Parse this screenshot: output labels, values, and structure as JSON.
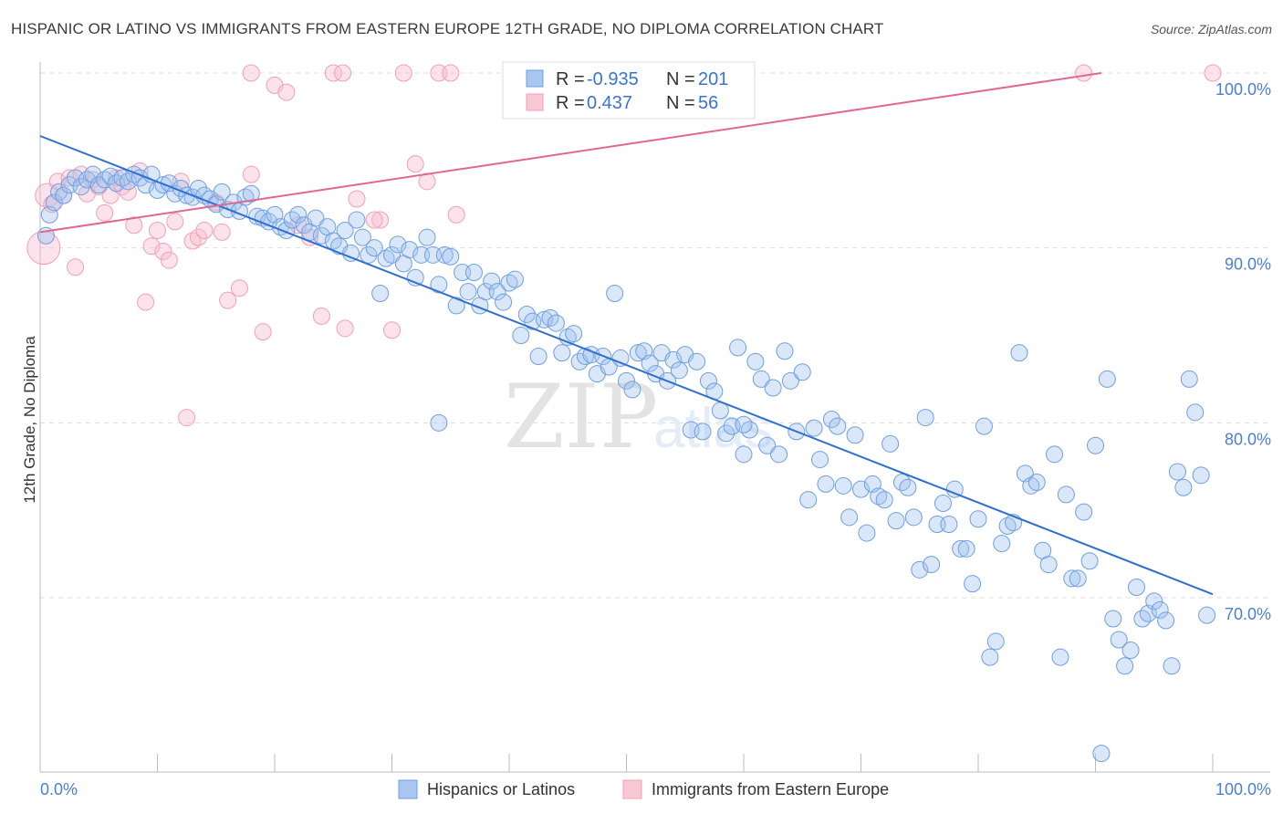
{
  "title": "HISPANIC OR LATINO VS IMMIGRANTS FROM EASTERN EUROPE 12TH GRADE, NO DIPLOMA CORRELATION CHART",
  "source": "Source: ZipAtlas.com",
  "watermark": {
    "zip": "ZIP",
    "atlas": "atlas"
  },
  "colors": {
    "blue": "#6f9fe0",
    "blue_line": "#2f6fd0",
    "pink": "#f0a0b8",
    "pink_line": "#e06890",
    "grid": "#dddddd",
    "tick_text": "#4a7fd4"
  },
  "chart_data": {
    "type": "scatter",
    "title": "HISPANIC OR LATINO VS IMMIGRANTS FROM EASTERN EUROPE 12TH GRADE, NO DIPLOMA CORRELATION CHART",
    "xlabel": "",
    "ylabel": "12th Grade, No Diploma",
    "xlim": [
      0,
      100
    ],
    "ylim": [
      60.5,
      101.5
    ],
    "x_ticks": [
      "0.0%",
      "100.0%"
    ],
    "y_ticks": [
      {
        "value": 100,
        "label": "100.0%"
      },
      {
        "value": 90,
        "label": "90.0%"
      },
      {
        "value": 80,
        "label": "80.0%"
      },
      {
        "value": 70,
        "label": "70.0%"
      }
    ],
    "grid": true,
    "legend_position": "bottom",
    "stats": [
      {
        "r_label": "R =",
        "r": "-0.935",
        "n_label": "N =",
        "n": "201"
      },
      {
        "r_label": "R =",
        "r": " 0.437",
        "n_label": "N =",
        "n": " 56"
      }
    ],
    "series": [
      {
        "name": "Hispanics or Latinos",
        "color": "#6f9fe0",
        "trend": {
          "x": [
            0,
            100
          ],
          "y": [
            96.4,
            70.2
          ]
        },
        "points": [
          [
            0.5,
            90.7
          ],
          [
            0.8,
            91.9
          ],
          [
            1.2,
            92.6
          ],
          [
            1.6,
            93.2
          ],
          [
            2.0,
            93.0
          ],
          [
            2.5,
            93.6
          ],
          [
            3.0,
            94.0
          ],
          [
            3.5,
            93.5
          ],
          [
            4.0,
            93.9
          ],
          [
            4.5,
            94.2
          ],
          [
            5.0,
            93.6
          ],
          [
            5.5,
            93.9
          ],
          [
            6.0,
            94.1
          ],
          [
            6.5,
            93.7
          ],
          [
            7.0,
            94.0
          ],
          [
            7.5,
            93.8
          ],
          [
            8.0,
            94.2
          ],
          [
            8.5,
            94.0
          ],
          [
            9.0,
            93.6
          ],
          [
            9.5,
            94.2
          ],
          [
            10.0,
            93.3
          ],
          [
            10.5,
            93.6
          ],
          [
            11.0,
            93.7
          ],
          [
            11.5,
            93.1
          ],
          [
            12.0,
            93.4
          ],
          [
            12.5,
            93.0
          ],
          [
            13.0,
            92.9
          ],
          [
            13.5,
            93.4
          ],
          [
            14.0,
            93.0
          ],
          [
            14.5,
            92.8
          ],
          [
            15.0,
            92.5
          ],
          [
            15.5,
            93.2
          ],
          [
            16.0,
            92.2
          ],
          [
            16.5,
            92.6
          ],
          [
            17.0,
            92.1
          ],
          [
            17.5,
            92.9
          ],
          [
            18.0,
            93.1
          ],
          [
            18.5,
            91.8
          ],
          [
            19.0,
            91.7
          ],
          [
            19.5,
            91.5
          ],
          [
            20.0,
            91.9
          ],
          [
            20.5,
            91.2
          ],
          [
            21.0,
            91.0
          ],
          [
            21.5,
            91.6
          ],
          [
            22.0,
            91.9
          ],
          [
            22.5,
            91.3
          ],
          [
            23.0,
            90.9
          ],
          [
            23.5,
            91.7
          ],
          [
            24.0,
            90.7
          ],
          [
            24.5,
            91.2
          ],
          [
            25.0,
            90.4
          ],
          [
            25.5,
            90.1
          ],
          [
            26.0,
            91.0
          ],
          [
            26.5,
            89.7
          ],
          [
            27.0,
            91.6
          ],
          [
            27.5,
            90.6
          ],
          [
            28.0,
            89.6
          ],
          [
            28.5,
            90.0
          ],
          [
            29.0,
            87.4
          ],
          [
            29.5,
            89.4
          ],
          [
            30.0,
            89.6
          ],
          [
            30.5,
            90.2
          ],
          [
            31.0,
            89.1
          ],
          [
            31.5,
            89.9
          ],
          [
            32.0,
            88.3
          ],
          [
            32.5,
            89.6
          ],
          [
            33.0,
            90.6
          ],
          [
            33.5,
            89.6
          ],
          [
            34.0,
            87.9
          ],
          [
            34.5,
            89.6
          ],
          [
            35.0,
            89.5
          ],
          [
            35.5,
            86.7
          ],
          [
            36.0,
            88.6
          ],
          [
            36.5,
            87.5
          ],
          [
            37.0,
            88.6
          ],
          [
            37.5,
            86.7
          ],
          [
            38.0,
            87.5
          ],
          [
            38.5,
            88.1
          ],
          [
            39.0,
            87.5
          ],
          [
            39.5,
            86.9
          ],
          [
            40.0,
            88.0
          ],
          [
            40.5,
            88.2
          ],
          [
            41.0,
            85.0
          ],
          [
            41.5,
            86.2
          ],
          [
            42.0,
            85.8
          ],
          [
            42.5,
            83.8
          ],
          [
            43.0,
            85.9
          ],
          [
            43.5,
            86.0
          ],
          [
            44.0,
            85.7
          ],
          [
            44.5,
            84.0
          ],
          [
            45.0,
            84.9
          ],
          [
            45.5,
            85.1
          ],
          [
            46.0,
            83.5
          ],
          [
            46.5,
            83.8
          ],
          [
            47.0,
            83.9
          ],
          [
            47.5,
            82.8
          ],
          [
            48.0,
            83.8
          ],
          [
            48.5,
            83.2
          ],
          [
            49.0,
            87.4
          ],
          [
            49.5,
            83.7
          ],
          [
            50.0,
            82.4
          ],
          [
            50.5,
            81.9
          ],
          [
            51.0,
            84.0
          ],
          [
            51.5,
            84.1
          ],
          [
            52.0,
            83.4
          ],
          [
            52.5,
            82.8
          ],
          [
            53.0,
            84.0
          ],
          [
            53.5,
            82.4
          ],
          [
            54.0,
            83.6
          ],
          [
            54.5,
            83.0
          ],
          [
            55.0,
            83.9
          ],
          [
            55.5,
            79.6
          ],
          [
            56.0,
            83.5
          ],
          [
            56.5,
            79.5
          ],
          [
            57.0,
            82.4
          ],
          [
            57.5,
            81.8
          ],
          [
            58.0,
            80.7
          ],
          [
            58.5,
            79.4
          ],
          [
            59.0,
            79.8
          ],
          [
            59.5,
            84.3
          ],
          [
            60.0,
            78.2
          ],
          [
            60.5,
            79.6
          ],
          [
            61.0,
            83.5
          ],
          [
            61.5,
            82.5
          ],
          [
            62.0,
            78.7
          ],
          [
            62.5,
            82.0
          ],
          [
            63.0,
            78.2
          ],
          [
            63.5,
            84.1
          ],
          [
            64.0,
            82.4
          ],
          [
            64.5,
            79.5
          ],
          [
            65.0,
            82.9
          ],
          [
            65.5,
            75.6
          ],
          [
            66.0,
            79.7
          ],
          [
            66.5,
            77.9
          ],
          [
            67.0,
            76.5
          ],
          [
            67.5,
            80.2
          ],
          [
            68.0,
            79.8
          ],
          [
            68.5,
            76.4
          ],
          [
            69.0,
            74.6
          ],
          [
            69.5,
            79.3
          ],
          [
            70.0,
            76.2
          ],
          [
            70.5,
            73.7
          ],
          [
            71.0,
            76.5
          ],
          [
            71.5,
            75.8
          ],
          [
            72.0,
            75.6
          ],
          [
            72.5,
            78.8
          ],
          [
            73.0,
            74.4
          ],
          [
            73.5,
            76.6
          ],
          [
            74.0,
            76.3
          ],
          [
            74.5,
            74.6
          ],
          [
            75.0,
            71.6
          ],
          [
            75.5,
            80.3
          ],
          [
            76.0,
            71.9
          ],
          [
            76.5,
            74.2
          ],
          [
            77.0,
            75.4
          ],
          [
            77.5,
            74.2
          ],
          [
            78.0,
            76.2
          ],
          [
            78.5,
            72.8
          ],
          [
            79.0,
            72.8
          ],
          [
            79.5,
            70.8
          ],
          [
            80.0,
            74.5
          ],
          [
            80.5,
            79.8
          ],
          [
            81.0,
            66.6
          ],
          [
            81.5,
            67.5
          ],
          [
            82.0,
            73.1
          ],
          [
            82.5,
            74.1
          ],
          [
            83.0,
            74.3
          ],
          [
            83.5,
            84.0
          ],
          [
            84.0,
            77.1
          ],
          [
            84.5,
            76.4
          ],
          [
            85.0,
            76.6
          ],
          [
            85.5,
            72.7
          ],
          [
            86.0,
            71.9
          ],
          [
            86.5,
            78.2
          ],
          [
            87.0,
            66.6
          ],
          [
            87.5,
            75.9
          ],
          [
            88.0,
            71.1
          ],
          [
            88.5,
            71.1
          ],
          [
            89.0,
            74.9
          ],
          [
            89.5,
            72.1
          ],
          [
            90.0,
            78.7
          ],
          [
            90.5,
            61.1
          ],
          [
            91.0,
            82.5
          ],
          [
            91.5,
            68.8
          ],
          [
            92.0,
            67.6
          ],
          [
            92.5,
            66.1
          ],
          [
            93.0,
            67.0
          ],
          [
            93.5,
            70.6
          ],
          [
            94.0,
            68.8
          ],
          [
            94.5,
            69.1
          ],
          [
            95.0,
            69.8
          ],
          [
            95.5,
            69.3
          ],
          [
            96.0,
            68.7
          ],
          [
            96.5,
            66.1
          ],
          [
            97.0,
            77.2
          ],
          [
            97.5,
            76.3
          ],
          [
            98.0,
            82.5
          ],
          [
            98.5,
            80.6
          ],
          [
            99.0,
            77.0
          ],
          [
            99.5,
            69.0
          ],
          [
            60.0,
            79.9
          ],
          [
            34.0,
            80.0
          ]
        ]
      },
      {
        "name": "Immigrants from Eastern Europe",
        "color": "#f0a0b8",
        "trend": {
          "x": [
            0,
            90.5
          ],
          "y": [
            90.9,
            100.0
          ]
        },
        "points": [
          [
            0.3,
            90.0
          ],
          [
            0.6,
            93.0
          ],
          [
            1.0,
            92.5
          ],
          [
            1.5,
            93.8
          ],
          [
            2.0,
            93.0
          ],
          [
            2.5,
            94.0
          ],
          [
            3.0,
            88.9
          ],
          [
            3.5,
            94.2
          ],
          [
            4.0,
            93.1
          ],
          [
            4.5,
            93.9
          ],
          [
            5.0,
            93.5
          ],
          [
            5.5,
            92.0
          ],
          [
            6.0,
            93.0
          ],
          [
            6.5,
            94.0
          ],
          [
            7.0,
            93.5
          ],
          [
            7.5,
            93.2
          ],
          [
            8.0,
            91.3
          ],
          [
            8.5,
            94.4
          ],
          [
            9.0,
            86.9
          ],
          [
            9.5,
            90.1
          ],
          [
            10.0,
            91.0
          ],
          [
            10.5,
            89.8
          ],
          [
            11.0,
            89.3
          ],
          [
            11.5,
            91.5
          ],
          [
            12.0,
            93.8
          ],
          [
            12.5,
            80.3
          ],
          [
            13.0,
            90.4
          ],
          [
            13.5,
            90.6
          ],
          [
            14.0,
            91.0
          ],
          [
            15.0,
            92.6
          ],
          [
            15.5,
            90.9
          ],
          [
            16.0,
            87.0
          ],
          [
            17.0,
            87.7
          ],
          [
            18.0,
            94.2
          ],
          [
            19.0,
            85.2
          ],
          [
            20.0,
            99.3
          ],
          [
            21.0,
            98.9
          ],
          [
            22.0,
            91.3
          ],
          [
            23.0,
            90.6
          ],
          [
            24.0,
            86.1
          ],
          [
            25.0,
            100.0
          ],
          [
            26.0,
            85.4
          ],
          [
            27.0,
            92.8
          ],
          [
            29.0,
            91.6
          ],
          [
            31.0,
            100.0
          ],
          [
            32.0,
            94.8
          ],
          [
            33.0,
            93.8
          ],
          [
            34.0,
            100.0
          ],
          [
            35.0,
            100.0
          ],
          [
            35.5,
            91.9
          ],
          [
            18.0,
            100.0
          ],
          [
            25.8,
            100.0
          ],
          [
            28.5,
            91.6
          ],
          [
            30.0,
            85.3
          ],
          [
            89.0,
            100.0
          ],
          [
            100.0,
            100.0
          ]
        ]
      }
    ]
  },
  "legend": {
    "items": [
      {
        "label": "Hispanics or Latinos",
        "color": "#a9c6f0",
        "border": "#6f9fe0"
      },
      {
        "label": "Immigrants from Eastern Europe",
        "color": "#f9c6d4",
        "border": "#f0a0b8"
      }
    ]
  }
}
